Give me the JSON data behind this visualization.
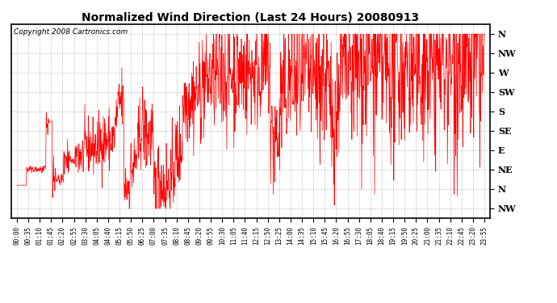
{
  "title": "Normalized Wind Direction (Last 24 Hours) 20080913",
  "copyright_text": "Copyright 2008 Cartronics.com",
  "line_color": "#ff0000",
  "bg_color": "#ffffff",
  "grid_color": "#aaaaaa",
  "ytick_labels_bottom_to_top": [
    "NW",
    "N",
    "NE",
    "E",
    "SE",
    "S",
    "SW",
    "W",
    "NW",
    "N"
  ],
  "ylim": [
    0.5,
    10.5
  ],
  "xtick_labels": [
    "00:00",
    "00:35",
    "01:10",
    "01:45",
    "02:20",
    "02:55",
    "03:30",
    "04:05",
    "04:40",
    "05:15",
    "05:50",
    "06:25",
    "07:00",
    "07:35",
    "08:10",
    "08:45",
    "09:20",
    "09:55",
    "10:30",
    "11:05",
    "11:40",
    "12:15",
    "12:50",
    "13:25",
    "14:00",
    "14:35",
    "15:10",
    "15:45",
    "16:20",
    "16:55",
    "17:30",
    "18:05",
    "18:40",
    "19:15",
    "19:50",
    "20:25",
    "21:00",
    "21:35",
    "22:10",
    "22:45",
    "23:20",
    "23:55"
  ],
  "n_points": 1440,
  "seed": 42
}
